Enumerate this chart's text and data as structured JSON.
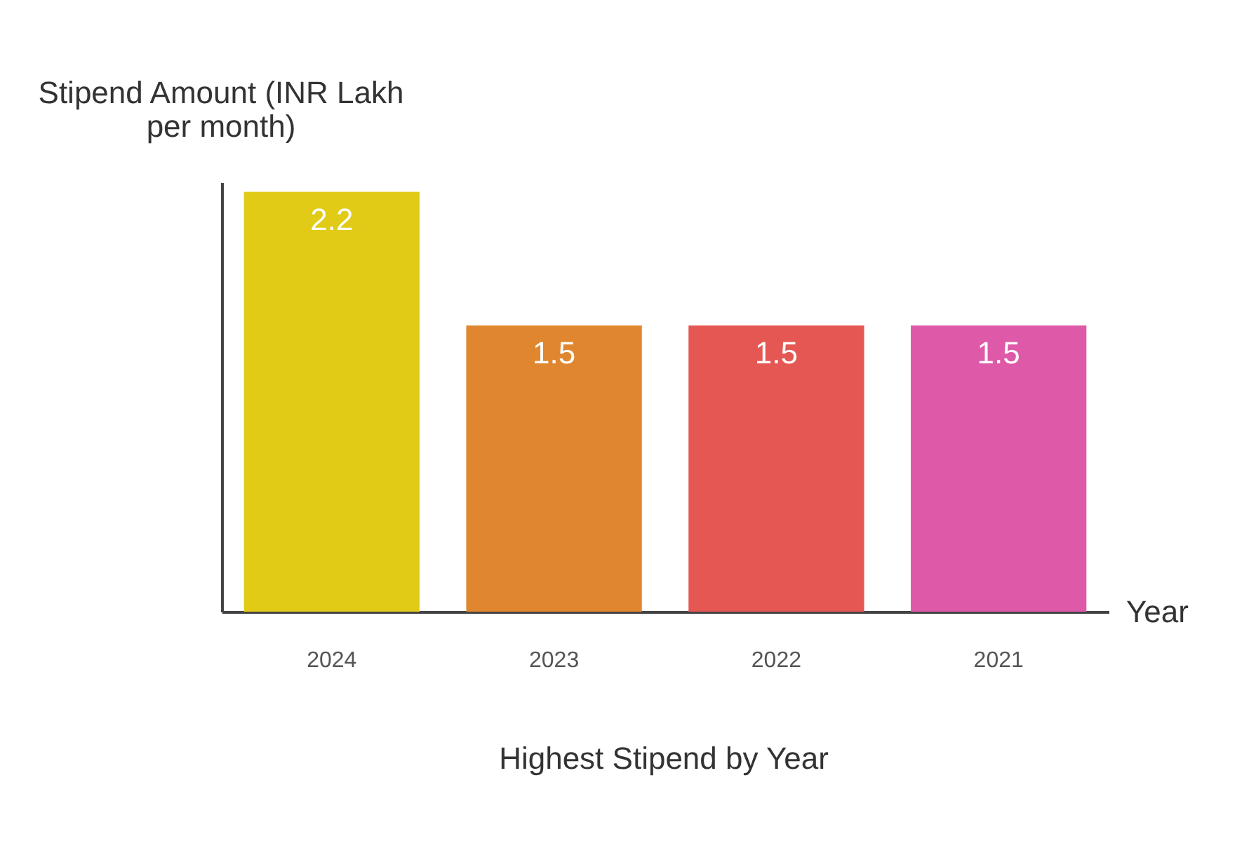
{
  "chart_data": {
    "type": "bar",
    "title": "Highest Stipend by Year",
    "xlabel": "Year",
    "ylabel": "Stipend Amount (INR Lakh per month)",
    "categories": [
      "2024",
      "2023",
      "2022",
      "2021"
    ],
    "values": [
      2.2,
      1.5,
      1.5,
      1.5
    ],
    "colors": [
      "#e1cb16",
      "#e0862f",
      "#e55753",
      "#de59a8"
    ],
    "ylim": [
      0,
      2.25
    ],
    "data_labels": true,
    "tick_labels": "x",
    "legend": false
  }
}
